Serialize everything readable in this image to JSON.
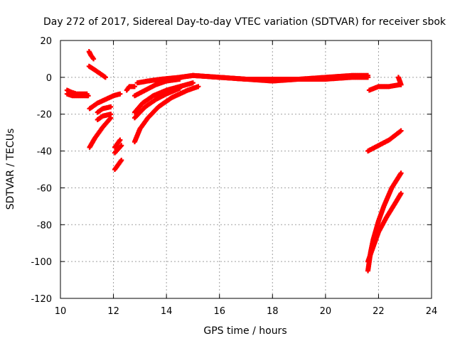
{
  "chart_data": {
    "type": "scatter",
    "title": "Day 272 of 2017, Sidereal Day-to-day VTEC variation (SDTVAR) for receiver sbok",
    "xlabel": "GPS time / hours",
    "ylabel": "SDTVAR / TECUs",
    "xlim": [
      10,
      24
    ],
    "ylim": [
      -120,
      20
    ],
    "xticks": [
      10,
      12,
      14,
      16,
      18,
      20,
      22,
      24
    ],
    "yticks": [
      -120,
      -100,
      -80,
      -60,
      -40,
      -20,
      0,
      20
    ],
    "grid": true,
    "legend": "none",
    "marker": "plus",
    "color": "#ff0000",
    "series": [
      {
        "points": [
          [
            10.25,
            -7
          ],
          [
            10.4,
            -8
          ],
          [
            10.6,
            -9
          ],
          [
            10.8,
            -9
          ],
          [
            11.0,
            -9
          ]
        ]
      },
      {
        "points": [
          [
            10.25,
            -9
          ],
          [
            10.45,
            -10
          ],
          [
            10.7,
            -10
          ],
          [
            10.95,
            -10
          ],
          [
            11.05,
            -10
          ]
        ]
      },
      {
        "points": [
          [
            11.08,
            14
          ],
          [
            11.15,
            12
          ],
          [
            11.25,
            10
          ]
        ]
      },
      {
        "points": [
          [
            11.08,
            6
          ],
          [
            11.3,
            4
          ],
          [
            11.5,
            2
          ],
          [
            11.7,
            0
          ]
        ]
      },
      {
        "points": [
          [
            11.1,
            -17
          ],
          [
            11.4,
            -14
          ],
          [
            11.7,
            -12
          ],
          [
            12.0,
            -10
          ],
          [
            12.25,
            -9
          ]
        ]
      },
      {
        "points": [
          [
            11.4,
            -19
          ],
          [
            11.6,
            -17
          ],
          [
            11.9,
            -16
          ]
        ]
      },
      {
        "points": [
          [
            11.4,
            -23
          ],
          [
            11.6,
            -21
          ],
          [
            11.9,
            -20
          ]
        ]
      },
      {
        "points": [
          [
            11.1,
            -38
          ],
          [
            11.3,
            -33
          ],
          [
            11.6,
            -27
          ],
          [
            11.9,
            -22
          ]
        ]
      },
      {
        "points": [
          [
            12.05,
            -38
          ],
          [
            12.25,
            -34
          ]
        ]
      },
      {
        "points": [
          [
            12.05,
            -41
          ],
          [
            12.3,
            -37
          ]
        ]
      },
      {
        "points": [
          [
            12.05,
            -50
          ],
          [
            12.3,
            -45
          ]
        ]
      },
      {
        "points": [
          [
            12.5,
            -7
          ],
          [
            12.6,
            -5
          ],
          [
            12.8,
            -5
          ]
        ]
      },
      {
        "points": [
          [
            12.9,
            -3
          ],
          [
            13.3,
            -2
          ],
          [
            13.8,
            -1
          ],
          [
            14.5,
            0
          ],
          [
            15.0,
            1
          ]
        ]
      },
      {
        "points": [
          [
            12.8,
            -10
          ],
          [
            13.2,
            -7
          ],
          [
            13.6,
            -4
          ],
          [
            14.0,
            -2
          ],
          [
            14.5,
            -1
          ]
        ]
      },
      {
        "points": [
          [
            12.8,
            -19
          ],
          [
            13.1,
            -14
          ],
          [
            13.5,
            -10
          ],
          [
            14.0,
            -7
          ],
          [
            14.5,
            -5
          ],
          [
            15.0,
            -3
          ]
        ]
      },
      {
        "points": [
          [
            12.8,
            -22
          ],
          [
            13.2,
            -16
          ],
          [
            13.6,
            -12
          ],
          [
            14.0,
            -9
          ],
          [
            14.5,
            -6
          ]
        ]
      },
      {
        "points": [
          [
            12.8,
            -35
          ],
          [
            13.0,
            -28
          ],
          [
            13.3,
            -22
          ],
          [
            13.7,
            -16
          ],
          [
            14.2,
            -11
          ],
          [
            14.8,
            -7
          ],
          [
            15.2,
            -5
          ]
        ]
      },
      {
        "points": [
          [
            14.0,
            -1
          ],
          [
            15.0,
            1
          ],
          [
            16.0,
            0
          ],
          [
            17.0,
            -1
          ],
          [
            18.0,
            -1
          ],
          [
            19.0,
            -1
          ],
          [
            20.0,
            -1
          ],
          [
            21.0,
            0
          ],
          [
            21.6,
            0
          ]
        ]
      },
      {
        "points": [
          [
            15.0,
            1
          ],
          [
            16.0,
            0
          ],
          [
            17.0,
            -1
          ],
          [
            18.0,
            -2
          ],
          [
            19.0,
            -1
          ],
          [
            20.0,
            0
          ],
          [
            21.0,
            1
          ],
          [
            21.6,
            1
          ]
        ]
      },
      {
        "points": [
          [
            21.65,
            -7
          ],
          [
            22.0,
            -5
          ],
          [
            22.4,
            -5
          ],
          [
            22.8,
            -4
          ]
        ]
      },
      {
        "points": [
          [
            22.75,
            0
          ],
          [
            22.8,
            -2
          ],
          [
            22.85,
            -4
          ]
        ]
      },
      {
        "points": [
          [
            21.6,
            -40
          ],
          [
            22.0,
            -37
          ],
          [
            22.4,
            -34
          ],
          [
            22.85,
            -29
          ]
        ]
      },
      {
        "points": [
          [
            21.6,
            -105
          ],
          [
            21.7,
            -95
          ],
          [
            21.8,
            -88
          ],
          [
            22.0,
            -78
          ],
          [
            22.2,
            -70
          ],
          [
            22.5,
            -60
          ],
          [
            22.85,
            -52
          ]
        ]
      },
      {
        "points": [
          [
            21.6,
            -100
          ],
          [
            21.8,
            -92
          ],
          [
            22.0,
            -84
          ],
          [
            22.3,
            -76
          ],
          [
            22.6,
            -69
          ],
          [
            22.85,
            -63
          ]
        ]
      }
    ]
  }
}
